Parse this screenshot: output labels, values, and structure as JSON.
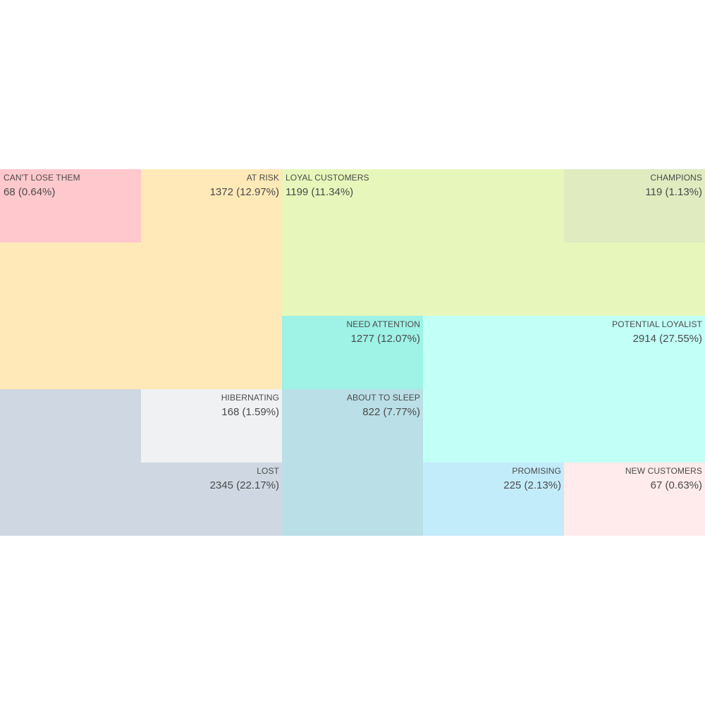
{
  "chart_data": {
    "type": "treemap",
    "segments": [
      {
        "name": "CAN'T LOSE THEM",
        "count": 68,
        "percent": "0.64%",
        "value_label": "68 (0.64%)",
        "color": "#ffc8cd"
      },
      {
        "name": "AT RISK",
        "count": 1372,
        "percent": "12.97%",
        "value_label": "1372 (12.97%)",
        "color": "#ffe9b8"
      },
      {
        "name": "LOYAL CUSTOMERS",
        "count": 1199,
        "percent": "11.34%",
        "value_label": "1199 (11.34%)",
        "color": "#e7f7bb"
      },
      {
        "name": "CHAMPIONS",
        "count": 119,
        "percent": "1.13%",
        "value_label": "119 (1.13%)",
        "color": "#e0ebc0"
      },
      {
        "name": "NEED ATTENTION",
        "count": 1277,
        "percent": "12.07%",
        "value_label": "1277 (12.07%)",
        "color": "#9ef2e6"
      },
      {
        "name": "POTENTIAL LOYALIST",
        "count": 2914,
        "percent": "27.55%",
        "value_label": "2914 (27.55%)",
        "color": "#c1fff7"
      },
      {
        "name": "HIBERNATING",
        "count": 168,
        "percent": "1.59%",
        "value_label": "168 (1.59%)",
        "color": "#f0f1f3"
      },
      {
        "name": "ABOUT TO SLEEP",
        "count": 822,
        "percent": "7.77%",
        "value_label": "822 (7.77%)",
        "color": "#badfe6"
      },
      {
        "name": "LOST",
        "count": 2345,
        "percent": "22.17%",
        "value_label": "2345 (22.17%)",
        "color": "#cfd8e2"
      },
      {
        "name": "PROMISING",
        "count": 225,
        "percent": "2.13%",
        "value_label": "225 (2.13%)",
        "color": "#c3ecfb"
      },
      {
        "name": "NEW CUSTOMERS",
        "count": 67,
        "percent": "0.63%",
        "value_label": "67 (0.63%)",
        "color": "#ffebeb"
      }
    ]
  }
}
